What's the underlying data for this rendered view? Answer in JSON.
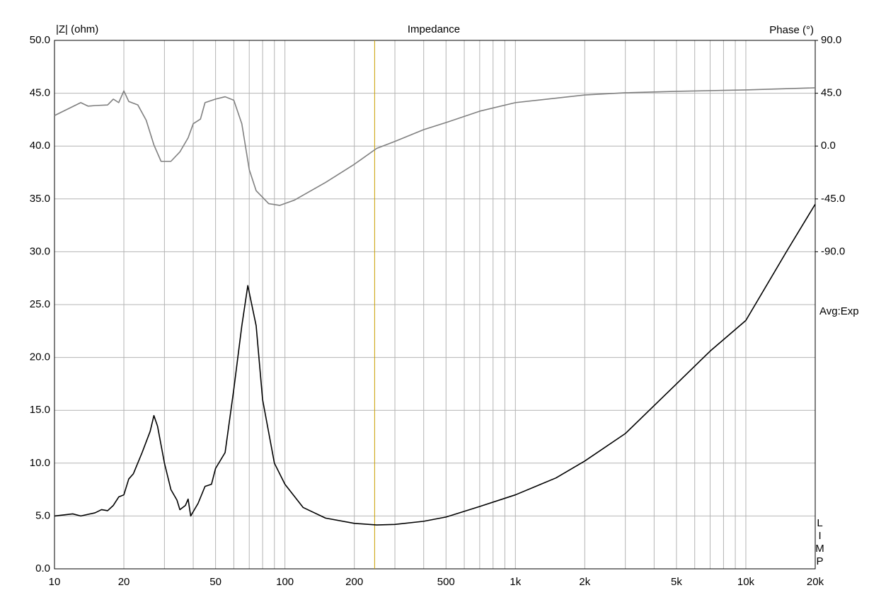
{
  "chart_data": {
    "type": "line",
    "title": "Impedance",
    "y_label": "|Z| (ohm)",
    "y2_label": "Phase (°)",
    "note": "Avg:Exp",
    "brand": "LIMP",
    "xscale": "log",
    "grid": true,
    "xlim": [
      10,
      20000
    ],
    "xticks": [
      10,
      20,
      50,
      100,
      200,
      500,
      {
        "value": 1000,
        "label": "1k"
      },
      {
        "value": 2000,
        "label": "2k"
      },
      {
        "value": 5000,
        "label": "5k"
      },
      {
        "value": 10000,
        "label": "10k"
      },
      {
        "value": 20000,
        "label": "20k"
      }
    ],
    "xgrid": [
      30,
      40,
      60,
      70,
      80,
      90,
      300,
      400,
      600,
      700,
      800,
      900,
      3000,
      4000,
      6000,
      7000,
      8000,
      9000
    ],
    "ylim": [
      0,
      50
    ],
    "yticks": [
      {
        "value": 0,
        "label": "0.0"
      },
      {
        "value": 5,
        "label": "5.0"
      },
      {
        "value": 10,
        "label": "10.0"
      },
      {
        "value": 15,
        "label": "15.0"
      },
      {
        "value": 20,
        "label": "20.0"
      },
      {
        "value": 25,
        "label": "25.0"
      },
      {
        "value": 30,
        "label": "30.0"
      },
      {
        "value": 35,
        "label": "35.0"
      },
      {
        "value": 40,
        "label": "40.0"
      },
      {
        "value": 45,
        "label": "45.0"
      },
      {
        "value": 50,
        "label": "50.0"
      }
    ],
    "y2lim": [
      -360,
      90
    ],
    "y2ticks": [
      {
        "value": -90,
        "label": "-90.0"
      },
      {
        "value": -45,
        "label": "-45.0"
      },
      {
        "value": 0,
        "label": "0.0"
      },
      {
        "value": 45,
        "label": "45.0"
      },
      {
        "value": 90,
        "label": "90.0"
      }
    ],
    "cursor": 245,
    "cursor_color": "#c8a000",
    "series": [
      {
        "name": "|Z|",
        "color": "#000000",
        "x": [
          10,
          12,
          13,
          15,
          16,
          17,
          18,
          19,
          20,
          21,
          22,
          24,
          26,
          27,
          28,
          30,
          32,
          34,
          35,
          37,
          38,
          39,
          42,
          45,
          48,
          50,
          55,
          60,
          65,
          69,
          75,
          80,
          90,
          100,
          120,
          150,
          200,
          250,
          300,
          400,
          500,
          700,
          1000,
          1500,
          2000,
          3000,
          5000,
          7000,
          10000,
          15000,
          20000
        ],
        "values": [
          5.0,
          5.2,
          5.0,
          5.3,
          5.6,
          5.5,
          6.0,
          6.8,
          7.0,
          8.5,
          9.0,
          11,
          13,
          14.5,
          13.5,
          10,
          7.5,
          6.5,
          5.6,
          6.0,
          6.6,
          5.0,
          6.2,
          7.8,
          8.0,
          9.5,
          11,
          17,
          23,
          26.8,
          23,
          16,
          10,
          8,
          5.8,
          4.8,
          4.3,
          4.15,
          4.2,
          4.5,
          4.9,
          5.9,
          7.0,
          8.6,
          10.2,
          12.8,
          17.5,
          20.6,
          23.5,
          30,
          34.5
        ]
      },
      {
        "name": "Phase",
        "color": "#808080",
        "axis": "y2",
        "x": [
          10,
          13,
          14,
          15,
          17,
          18,
          19,
          20,
          21,
          23,
          25,
          27,
          29,
          32,
          35,
          38,
          40,
          43,
          45,
          50,
          55,
          60,
          65,
          70,
          75,
          85,
          95,
          110,
          150,
          200,
          250,
          300,
          400,
          500,
          700,
          1000,
          2000,
          3000,
          5000,
          10000,
          20000
        ],
        "values": [
          26,
          37,
          34,
          34.5,
          35,
          40,
          37,
          47,
          38,
          35,
          22,
          1,
          -13,
          -13,
          -5,
          7,
          19,
          23,
          37,
          40,
          42,
          39,
          19,
          -20,
          -38,
          -49,
          -50.5,
          -46,
          -31,
          -15.5,
          -2,
          4,
          14,
          20,
          29.7,
          37,
          43.5,
          45.4,
          46.6,
          47.8,
          49.6
        ]
      }
    ]
  }
}
